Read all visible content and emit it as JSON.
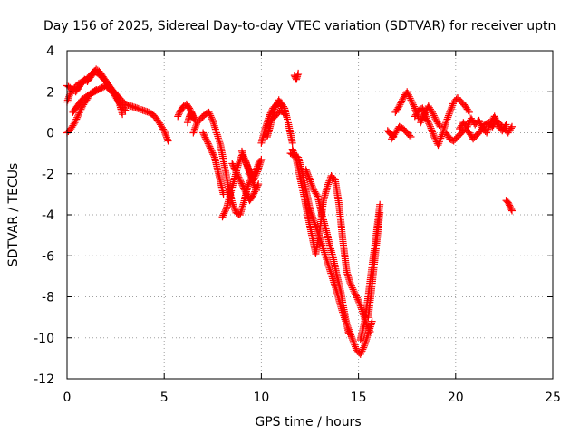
{
  "chart_data": {
    "type": "scatter",
    "title": "Day 156 of 2025, Sidereal Day-to-day VTEC variation (SDTVAR) for receiver uptn",
    "xlabel": "GPS time / hours",
    "ylabel": "SDTVAR / TECUs",
    "xlim": [
      0,
      25
    ],
    "ylim": [
      -12,
      4
    ],
    "x_ticks": [
      0,
      5,
      10,
      15,
      20,
      25
    ],
    "y_ticks": [
      4,
      2,
      0,
      -2,
      -4,
      -6,
      -8,
      -10,
      -12
    ],
    "x_tick_labels": [
      "0",
      "5",
      "10",
      "15",
      "20",
      "25"
    ],
    "y_tick_labels": [
      "4",
      "2",
      "0",
      "-2",
      "-4",
      "-6",
      "-8",
      "-10",
      "-12"
    ],
    "grid": true,
    "marker": "+",
    "color": "#ff0000",
    "series": [
      {
        "name": "SDTVAR",
        "segments": [
          {
            "x": [
              0.0,
              0.2,
              0.4,
              0.6,
              0.8,
              1.0,
              1.2,
              1.4,
              1.6,
              1.8,
              2.0,
              2.2,
              2.4,
              2.6,
              2.8,
              3.0,
              3.3,
              3.6,
              3.9,
              4.2,
              4.4,
              4.6,
              4.8,
              5.0,
              5.2
            ],
            "y": [
              1.5,
              2.0,
              2.2,
              2.4,
              2.5,
              2.6,
              2.8,
              3.0,
              2.9,
              2.7,
              2.5,
              2.2,
              2.0,
              1.8,
              1.6,
              1.4,
              1.3,
              1.2,
              1.1,
              1.0,
              0.9,
              0.7,
              0.4,
              0.1,
              -0.4
            ]
          },
          {
            "x": [
              0.0,
              0.2,
              0.4,
              0.6,
              0.8,
              1.0,
              1.2,
              1.4,
              1.6,
              1.8,
              2.0,
              2.2,
              2.4,
              2.6,
              2.8,
              3.0
            ],
            "y": [
              0.0,
              0.2,
              0.5,
              0.9,
              1.3,
              1.6,
              1.9,
              2.0,
              2.1,
              2.2,
              2.3,
              2.1,
              1.9,
              1.6,
              1.3,
              1.1
            ]
          },
          {
            "x": [
              0.0,
              0.15,
              0.3,
              0.45,
              0.6,
              0.75,
              0.9,
              1.05,
              1.2,
              1.35,
              1.5,
              1.65,
              1.8,
              1.95,
              2.1,
              2.25,
              2.4,
              2.55,
              2.7,
              2.85
            ],
            "y": [
              2.3,
              2.2,
              2.1,
              2.0,
              2.2,
              2.4,
              2.6,
              2.5,
              2.7,
              2.9,
              3.1,
              3.0,
              2.8,
              2.6,
              2.4,
              2.2,
              2.0,
              1.8,
              1.4,
              0.9
            ]
          },
          {
            "x": [
              0.3,
              0.45,
              0.6,
              0.75,
              0.9,
              1.05,
              1.2,
              1.35,
              1.5
            ],
            "y": [
              1.0,
              1.2,
              1.4,
              1.6,
              1.7,
              1.8,
              1.9,
              2.0,
              2.1
            ]
          },
          {
            "x": [
              5.7,
              5.85,
              6.0,
              6.15,
              6.3,
              6.45,
              6.6
            ],
            "y": [
              0.8,
              1.1,
              1.3,
              1.4,
              1.2,
              0.9,
              0.6
            ]
          },
          {
            "x": [
              6.2,
              6.3,
              6.4,
              6.5
            ],
            "y": [
              0.5,
              0.8,
              1.0,
              0.7
            ]
          },
          {
            "x": [
              6.5,
              6.7,
              6.9,
              7.1,
              7.3,
              7.5,
              7.7,
              7.9,
              8.1,
              8.3,
              8.5,
              8.7,
              8.9,
              9.1,
              9.3,
              9.5,
              9.7,
              9.9
            ],
            "y": [
              0.0,
              0.5,
              0.7,
              0.9,
              1.0,
              0.6,
              0.0,
              -0.6,
              -1.6,
              -2.6,
              -3.4,
              -3.9,
              -4.0,
              -3.4,
              -2.6,
              -2.2,
              -1.9,
              -1.4
            ]
          },
          {
            "x": [
              7.0,
              7.15,
              7.3,
              7.45,
              7.6,
              7.75,
              7.9,
              8.05
            ],
            "y": [
              0.0,
              -0.3,
              -0.6,
              -0.9,
              -1.2,
              -1.8,
              -2.4,
              -3.0
            ]
          },
          {
            "x": [
              8.0,
              8.2,
              8.4,
              8.6,
              8.8,
              9.0,
              9.2,
              9.4,
              9.6,
              9.8,
              10.0
            ],
            "y": [
              -4.1,
              -3.7,
              -3.0,
              -2.3,
              -1.6,
              -1.1,
              -1.4,
              -1.9,
              -2.3,
              -1.9,
              -1.3
            ]
          },
          {
            "x": [
              8.5,
              8.65,
              8.8,
              8.95,
              9.1,
              9.25,
              9.4,
              9.55,
              9.7,
              9.85
            ],
            "y": [
              -1.5,
              -1.8,
              -2.1,
              -2.4,
              -2.7,
              -3.0,
              -3.3,
              -3.1,
              -2.8,
              -2.5
            ]
          },
          {
            "x": [
              9.0,
              9.15,
              9.3,
              9.45,
              9.6,
              9.75
            ],
            "y": [
              -0.9,
              -1.3,
              -1.7,
              -2.1,
              -2.5,
              -2.8
            ]
          },
          {
            "x": [
              10.0,
              10.2,
              10.4,
              10.6,
              10.8,
              11.0,
              11.2,
              11.4,
              11.6
            ],
            "y": [
              -0.5,
              0.2,
              0.8,
              1.2,
              1.4,
              1.5,
              1.2,
              0.4,
              -0.5
            ]
          },
          {
            "x": [
              10.2,
              10.4,
              10.6,
              10.8,
              11.0,
              11.2
            ],
            "y": [
              0.2,
              0.5,
              0.7,
              0.9,
              1.1,
              0.9
            ]
          },
          {
            "x": [
              10.3,
              10.45,
              10.6,
              10.75,
              10.9,
              11.05
            ],
            "y": [
              -0.2,
              0.3,
              0.9,
              1.3,
              1.6,
              1.2
            ]
          },
          {
            "x": [
              11.7,
              11.8,
              11.9
            ],
            "y": [
              2.8,
              2.6,
              2.9
            ]
          },
          {
            "x": [
              11.5,
              11.7,
              11.9,
              12.1,
              12.3,
              12.5,
              12.7,
              12.9,
              13.1,
              13.3,
              13.5,
              13.7,
              13.9,
              14.1,
              14.3,
              14.5,
              14.7,
              14.9,
              15.1,
              15.3,
              15.5,
              15.7
            ],
            "y": [
              -1.0,
              -1.1,
              -1.2,
              -1.9,
              -2.8,
              -3.7,
              -4.3,
              -4.8,
              -5.4,
              -6.0,
              -6.6,
              -7.2,
              -7.8,
              -8.5,
              -9.1,
              -9.6,
              -10.1,
              -10.6,
              -10.8,
              -10.4,
              -9.8,
              -9.2
            ]
          },
          {
            "x": [
              11.6,
              11.8,
              12.0,
              12.2,
              12.4,
              12.6,
              12.8,
              13.0,
              13.2,
              13.4,
              13.6,
              13.8,
              14.0,
              14.2,
              14.4,
              14.6,
              14.8,
              15.0,
              15.2,
              15.4,
              15.6
            ],
            "y": [
              -0.8,
              -1.3,
              -2.2,
              -3.1,
              -4.1,
              -5.0,
              -5.9,
              -4.8,
              -3.3,
              -2.6,
              -2.1,
              -2.3,
              -3.5,
              -5.3,
              -6.8,
              -7.4,
              -7.8,
              -8.2,
              -8.7,
              -9.3,
              -9.7
            ]
          },
          {
            "x": [
              12.3,
              12.5,
              12.7,
              12.9,
              13.1,
              13.3,
              13.5,
              13.7,
              13.9,
              14.1,
              14.3,
              14.5
            ],
            "y": [
              -1.8,
              -2.3,
              -2.8,
              -3.1,
              -3.9,
              -4.6,
              -5.4,
              -6.1,
              -7.0,
              -7.8,
              -8.9,
              -9.8
            ]
          },
          {
            "x": [
              15.1,
              15.3,
              15.5,
              15.7,
              15.9,
              16.1
            ],
            "y": [
              -10.1,
              -9.3,
              -8.0,
              -6.5,
              -5.1,
              -3.5
            ]
          },
          {
            "x": [
              15.5,
              15.65,
              15.8,
              15.95,
              16.1
            ],
            "y": [
              -9.0,
              -7.8,
              -6.5,
              -5.2,
              -3.9
            ]
          },
          {
            "x": [
              16.5,
              16.8
            ],
            "y": [
              0.1,
              -0.2
            ]
          },
          {
            "x": [
              16.9,
              17.1,
              17.3,
              17.5,
              17.7,
              17.9,
              18.1
            ],
            "y": [
              1.0,
              1.3,
              1.7,
              2.0,
              1.6,
              1.2,
              0.7
            ]
          },
          {
            "x": [
              16.7,
              16.9,
              17.1,
              17.3,
              17.5,
              17.7
            ],
            "y": [
              -0.3,
              0.0,
              0.3,
              0.2,
              0.0,
              -0.2
            ]
          },
          {
            "x": [
              17.9,
              18.1,
              18.3,
              18.5,
              18.7,
              18.9,
              19.1,
              19.3,
              19.5,
              19.7,
              19.9,
              20.1,
              20.3,
              20.5,
              20.7
            ],
            "y": [
              0.8,
              1.1,
              1.2,
              0.7,
              0.3,
              -0.2,
              -0.6,
              -0.1,
              0.5,
              1.0,
              1.5,
              1.7,
              1.5,
              1.3,
              1.0
            ]
          },
          {
            "x": [
              18.2,
              18.4,
              18.6,
              18.8,
              19.0,
              19.2
            ],
            "y": [
              0.5,
              0.9,
              1.3,
              1.0,
              0.6,
              0.3
            ]
          },
          {
            "x": [
              19.5,
              19.7,
              19.9,
              20.1,
              20.3,
              20.5,
              20.7,
              20.9,
              21.1,
              21.3,
              21.5,
              21.7,
              21.9,
              22.1,
              22.3,
              22.5,
              22.7,
              22.9
            ],
            "y": [
              0.0,
              -0.3,
              -0.4,
              -0.2,
              0.0,
              0.2,
              0.0,
              -0.3,
              -0.1,
              0.1,
              0.4,
              0.5,
              0.3,
              0.6,
              0.4,
              0.2,
              0.0,
              0.3
            ]
          },
          {
            "x": [
              20.2,
              20.4,
              20.6,
              20.8,
              21.0,
              21.2,
              21.4,
              21.6,
              21.8,
              22.0,
              22.2,
              22.4,
              22.6
            ],
            "y": [
              0.2,
              0.5,
              0.3,
              0.7,
              0.4,
              0.6,
              0.2,
              0.0,
              0.5,
              0.8,
              0.3,
              0.1,
              0.4
            ]
          },
          {
            "x": [
              22.6,
              22.7,
              22.8,
              22.9
            ],
            "y": [
              -3.3,
              -3.4,
              -3.6,
              -3.8
            ]
          }
        ]
      }
    ]
  }
}
